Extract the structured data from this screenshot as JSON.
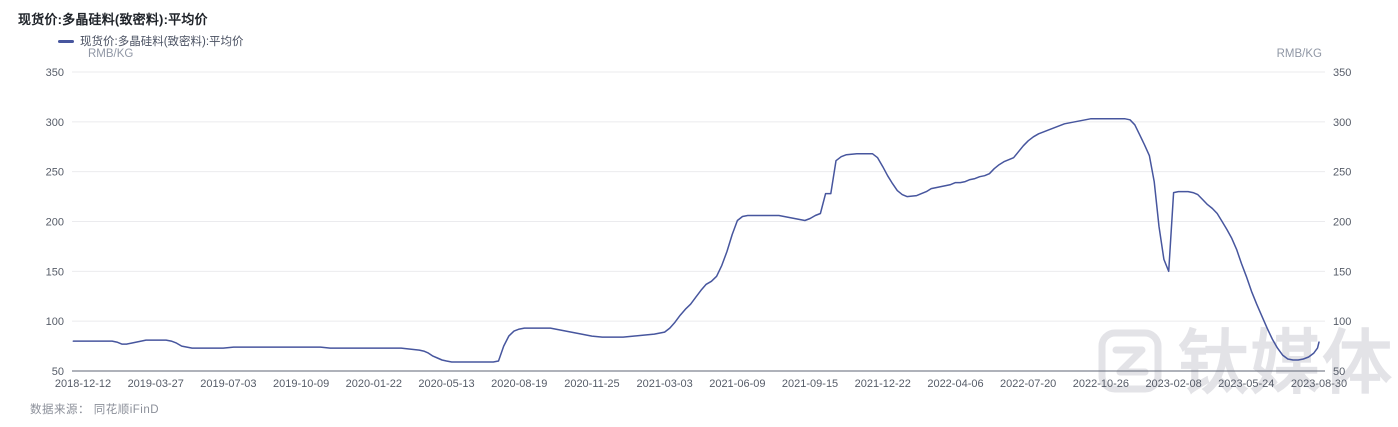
{
  "title": "现货价:多晶硅料(致密料):平均价",
  "legend": {
    "label": "现货价:多晶硅料(致密料):平均价"
  },
  "axes": {
    "unit_left": "RMB/KG",
    "unit_right": "RMB/KG"
  },
  "source": "数据来源： 同花顺iFinD",
  "watermark": {
    "text": "钛媒体",
    "logo": "tmtpost-z-logo"
  },
  "colors": {
    "line": "#47569e",
    "grid": "#ebebee",
    "axis_line": "#5f6574",
    "tick_label": "#565c68",
    "watermark": "#e3e3e7"
  },
  "chart_data": {
    "type": "line",
    "title": "现货价:多晶硅料(致密料):平均价",
    "ylabel": "RMB/KG",
    "ylim": [
      50,
      350
    ],
    "y_ticks": [
      350,
      300,
      250,
      200,
      150,
      100,
      50
    ],
    "grid": true,
    "legend_position": "top-left",
    "x_tick_dates": [
      "2018-12-12",
      "2019-03-27",
      "2019-07-03",
      "2019-10-09",
      "2020-01-22",
      "2020-05-13",
      "2020-08-19",
      "2020-11-25",
      "2021-03-03",
      "2021-06-09",
      "2021-09-15",
      "2021-12-22",
      "2022-04-06",
      "2022-07-20",
      "2022-10-26",
      "2023-02-08",
      "2023-05-24",
      "2023-08-30"
    ],
    "series": [
      {
        "name": "现货价:多晶硅料(致密料):平均价",
        "unit": "RMB/KG",
        "points": [
          [
            "2018-11-28",
            80
          ],
          [
            "2018-12-12",
            80
          ],
          [
            "2018-12-26",
            80
          ],
          [
            "2019-01-09",
            80
          ],
          [
            "2019-01-23",
            80
          ],
          [
            "2019-01-30",
            79
          ],
          [
            "2019-02-06",
            77
          ],
          [
            "2019-02-13",
            77
          ],
          [
            "2019-02-20",
            78
          ],
          [
            "2019-02-27",
            79
          ],
          [
            "2019-03-06",
            80
          ],
          [
            "2019-03-13",
            81
          ],
          [
            "2019-03-27",
            81
          ],
          [
            "2019-04-10",
            81
          ],
          [
            "2019-04-17",
            80
          ],
          [
            "2019-04-24",
            78
          ],
          [
            "2019-05-01",
            75
          ],
          [
            "2019-05-08",
            74
          ],
          [
            "2019-05-15",
            73
          ],
          [
            "2019-05-29",
            73
          ],
          [
            "2019-06-12",
            73
          ],
          [
            "2019-06-26",
            73
          ],
          [
            "2019-07-10",
            74
          ],
          [
            "2019-07-24",
            74
          ],
          [
            "2019-08-07",
            74
          ],
          [
            "2019-08-21",
            74
          ],
          [
            "2019-09-04",
            74
          ],
          [
            "2019-09-18",
            74
          ],
          [
            "2019-10-09",
            74
          ],
          [
            "2019-10-23",
            74
          ],
          [
            "2019-11-06",
            74
          ],
          [
            "2019-11-20",
            73
          ],
          [
            "2019-12-04",
            73
          ],
          [
            "2019-12-18",
            73
          ],
          [
            "2020-01-01",
            73
          ],
          [
            "2020-01-22",
            73
          ],
          [
            "2020-02-05",
            73
          ],
          [
            "2020-02-19",
            73
          ],
          [
            "2020-03-04",
            73
          ],
          [
            "2020-03-18",
            72
          ],
          [
            "2020-04-01",
            71
          ],
          [
            "2020-04-08",
            70
          ],
          [
            "2020-04-15",
            68
          ],
          [
            "2020-04-22",
            65
          ],
          [
            "2020-04-29",
            63
          ],
          [
            "2020-05-06",
            61
          ],
          [
            "2020-05-13",
            60
          ],
          [
            "2020-05-20",
            59
          ],
          [
            "2020-06-03",
            59
          ],
          [
            "2020-06-17",
            59
          ],
          [
            "2020-07-01",
            59
          ],
          [
            "2020-07-15",
            59
          ],
          [
            "2020-07-22",
            60
          ],
          [
            "2020-07-29",
            75
          ],
          [
            "2020-08-05",
            85
          ],
          [
            "2020-08-12",
            90
          ],
          [
            "2020-08-19",
            92
          ],
          [
            "2020-08-26",
            93
          ],
          [
            "2020-09-09",
            93
          ],
          [
            "2020-09-23",
            93
          ],
          [
            "2020-09-30",
            93
          ],
          [
            "2020-10-14",
            91
          ],
          [
            "2020-10-21",
            90
          ],
          [
            "2020-11-04",
            88
          ],
          [
            "2020-11-11",
            87
          ],
          [
            "2020-11-18",
            86
          ],
          [
            "2020-11-25",
            85
          ],
          [
            "2020-12-09",
            84
          ],
          [
            "2020-12-23",
            84
          ],
          [
            "2021-01-06",
            84
          ],
          [
            "2021-01-20",
            85
          ],
          [
            "2021-02-03",
            86
          ],
          [
            "2021-02-17",
            87
          ],
          [
            "2021-03-03",
            89
          ],
          [
            "2021-03-10",
            93
          ],
          [
            "2021-03-17",
            99
          ],
          [
            "2021-03-24",
            106
          ],
          [
            "2021-03-31",
            112
          ],
          [
            "2021-04-07",
            117
          ],
          [
            "2021-04-14",
            124
          ],
          [
            "2021-04-21",
            131
          ],
          [
            "2021-04-28",
            137
          ],
          [
            "2021-05-05",
            140
          ],
          [
            "2021-05-12",
            145
          ],
          [
            "2021-05-19",
            156
          ],
          [
            "2021-05-26",
            170
          ],
          [
            "2021-06-02",
            187
          ],
          [
            "2021-06-09",
            201
          ],
          [
            "2021-06-16",
            205
          ],
          [
            "2021-06-23",
            206
          ],
          [
            "2021-07-07",
            206
          ],
          [
            "2021-07-21",
            206
          ],
          [
            "2021-08-04",
            206
          ],
          [
            "2021-08-18",
            204
          ],
          [
            "2021-09-01",
            202
          ],
          [
            "2021-09-08",
            201
          ],
          [
            "2021-09-15",
            203
          ],
          [
            "2021-09-22",
            206
          ],
          [
            "2021-09-29",
            208
          ],
          [
            "2021-10-06",
            228
          ],
          [
            "2021-10-13",
            228
          ],
          [
            "2021-10-20",
            261
          ],
          [
            "2021-10-27",
            265
          ],
          [
            "2021-11-03",
            267
          ],
          [
            "2021-11-17",
            268
          ],
          [
            "2021-12-01",
            268
          ],
          [
            "2021-12-08",
            268
          ],
          [
            "2021-12-15",
            264
          ],
          [
            "2021-12-22",
            255
          ],
          [
            "2021-12-29",
            246
          ],
          [
            "2022-01-05",
            238
          ],
          [
            "2022-01-12",
            231
          ],
          [
            "2022-01-19",
            227
          ],
          [
            "2022-01-26",
            225
          ],
          [
            "2022-02-09",
            226
          ],
          [
            "2022-02-16",
            228
          ],
          [
            "2022-02-23",
            230
          ],
          [
            "2022-03-02",
            233
          ],
          [
            "2022-03-09",
            234
          ],
          [
            "2022-03-16",
            235
          ],
          [
            "2022-03-23",
            236
          ],
          [
            "2022-03-30",
            237
          ],
          [
            "2022-04-06",
            239
          ],
          [
            "2022-04-13",
            239
          ],
          [
            "2022-04-20",
            240
          ],
          [
            "2022-04-27",
            242
          ],
          [
            "2022-05-04",
            243
          ],
          [
            "2022-05-11",
            245
          ],
          [
            "2022-05-18",
            246
          ],
          [
            "2022-05-25",
            248
          ],
          [
            "2022-06-01",
            253
          ],
          [
            "2022-06-08",
            257
          ],
          [
            "2022-06-15",
            260
          ],
          [
            "2022-06-22",
            262
          ],
          [
            "2022-06-29",
            264
          ],
          [
            "2022-07-06",
            270
          ],
          [
            "2022-07-13",
            276
          ],
          [
            "2022-07-20",
            281
          ],
          [
            "2022-07-27",
            285
          ],
          [
            "2022-08-03",
            288
          ],
          [
            "2022-08-10",
            290
          ],
          [
            "2022-08-17",
            292
          ],
          [
            "2022-08-24",
            294
          ],
          [
            "2022-08-31",
            296
          ],
          [
            "2022-09-07",
            298
          ],
          [
            "2022-09-14",
            299
          ],
          [
            "2022-09-21",
            300
          ],
          [
            "2022-09-28",
            301
          ],
          [
            "2022-10-05",
            302
          ],
          [
            "2022-10-12",
            303
          ],
          [
            "2022-10-26",
            303
          ],
          [
            "2022-11-09",
            303
          ],
          [
            "2022-11-23",
            303
          ],
          [
            "2022-11-30",
            303
          ],
          [
            "2022-12-07",
            302
          ],
          [
            "2022-12-14",
            297
          ],
          [
            "2022-12-21",
            287
          ],
          [
            "2022-12-28",
            277
          ],
          [
            "2023-01-04",
            266
          ],
          [
            "2023-01-11",
            240
          ],
          [
            "2023-01-18",
            195
          ],
          [
            "2023-01-25",
            162
          ],
          [
            "2023-02-01",
            150
          ],
          [
            "2023-02-08",
            229
          ],
          [
            "2023-02-15",
            230
          ],
          [
            "2023-02-22",
            230
          ],
          [
            "2023-03-01",
            230
          ],
          [
            "2023-03-08",
            229
          ],
          [
            "2023-03-15",
            227
          ],
          [
            "2023-03-22",
            222
          ],
          [
            "2023-03-29",
            217
          ],
          [
            "2023-04-05",
            213
          ],
          [
            "2023-04-12",
            208
          ],
          [
            "2023-04-19",
            200
          ],
          [
            "2023-04-26",
            192
          ],
          [
            "2023-05-03",
            183
          ],
          [
            "2023-05-10",
            172
          ],
          [
            "2023-05-17",
            158
          ],
          [
            "2023-05-24",
            145
          ],
          [
            "2023-05-31",
            130
          ],
          [
            "2023-06-07",
            117
          ],
          [
            "2023-06-14",
            105
          ],
          [
            "2023-06-21",
            93
          ],
          [
            "2023-06-28",
            82
          ],
          [
            "2023-07-05",
            73
          ],
          [
            "2023-07-12",
            66
          ],
          [
            "2023-07-19",
            62
          ],
          [
            "2023-07-26",
            61
          ],
          [
            "2023-08-02",
            61
          ],
          [
            "2023-08-09",
            62
          ],
          [
            "2023-08-16",
            64
          ],
          [
            "2023-08-23",
            68
          ],
          [
            "2023-08-28",
            73
          ],
          [
            "2023-08-30",
            79
          ]
        ]
      }
    ]
  }
}
